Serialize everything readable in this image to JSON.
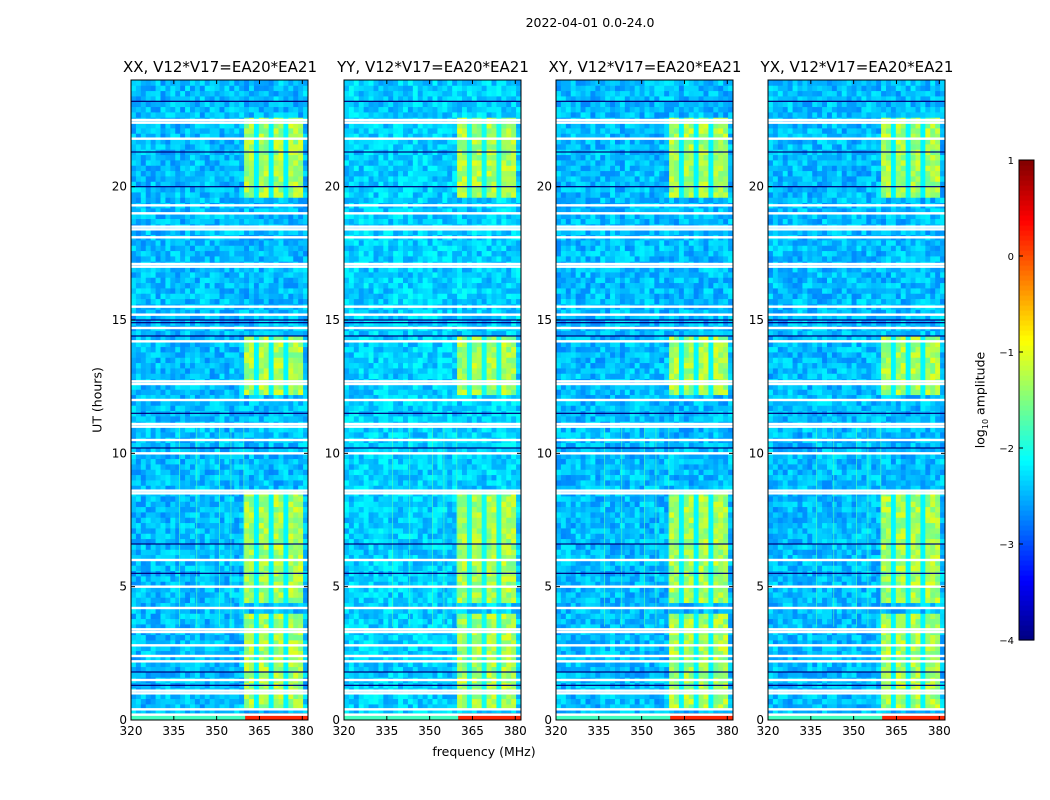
{
  "figure": {
    "suptitle": "2022-04-01 0.0-24.0",
    "xlabel": "frequency (MHz)",
    "ylabel": "UT (hours)",
    "colorbar_label_pre": "log",
    "colorbar_label_sub": "10",
    "colorbar_label_post": " amplitude"
  },
  "chart_data": {
    "type": "heatmap",
    "colormap": "jet",
    "title": "2022-04-01 0.0-24.0",
    "xlabel": "frequency (MHz)",
    "ylabel": "UT (hours)",
    "xlim": [
      320,
      382
    ],
    "ylim": [
      0,
      24
    ],
    "xticks": [
      320,
      335,
      350,
      365,
      380
    ],
    "yticks": [
      0,
      5,
      10,
      15,
      20
    ],
    "colorbar": {
      "label": "log10 amplitude",
      "range": [
        -4,
        1
      ],
      "ticks": [
        1,
        0,
        -1,
        -2,
        -3,
        -4
      ],
      "tick_labels": [
        "1",
        "0",
        "−1",
        "−2",
        "−3",
        "−4"
      ]
    },
    "panels": [
      {
        "title": "XX, V12*V17=EA20*EA21",
        "polarization": "XX",
        "baseline_level": -2.45
      },
      {
        "title": "YY, V12*V17=EA20*EA21",
        "polarization": "YY",
        "baseline_level": -2.35
      },
      {
        "title": "XY, V12*V17=EA20*EA21",
        "polarization": "XY",
        "baseline_level": -2.45
      },
      {
        "title": "YX, V12*V17=EA20*EA21",
        "polarization": "YX",
        "baseline_level": -2.45
      }
    ],
    "rfi_band": {
      "freq_range_mhz": [
        360,
        380
      ],
      "level": -1.3
    },
    "rfi_time_ranges_hours": [
      [
        0.5,
        4.0
      ],
      [
        4.5,
        8.5
      ],
      [
        12.2,
        14.3
      ],
      [
        19.7,
        22.5
      ]
    ],
    "blank_time_rows_hours": [
      0.2,
      0.4,
      1.0,
      1.1,
      1.5,
      2.2,
      2.4,
      2.8,
      3.3,
      3.4,
      4.2,
      5.0,
      6.0,
      8.5,
      8.6,
      10.0,
      10.5,
      11.0,
      11.1,
      12.0,
      12.6,
      12.7,
      14.2,
      14.7,
      15.2,
      15.5,
      17.0,
      17.1,
      18.1,
      18.4,
      18.5,
      19.0,
      19.3,
      21.8,
      22.4,
      22.5
    ],
    "dark_time_rows_hours": [
      1.3,
      1.8,
      5.5,
      6.6,
      10.2,
      11.5,
      14.4,
      14.9,
      15.0,
      20.0,
      21.3,
      23.2
    ],
    "bottom_row": {
      "time_hours": [
        0.0,
        0.25
      ],
      "level_lower_band": -1.8,
      "level_rfi_band": 0.2
    },
    "narrowband_channels_mhz": [
      337,
      343,
      351,
      355,
      359.5
    ]
  }
}
